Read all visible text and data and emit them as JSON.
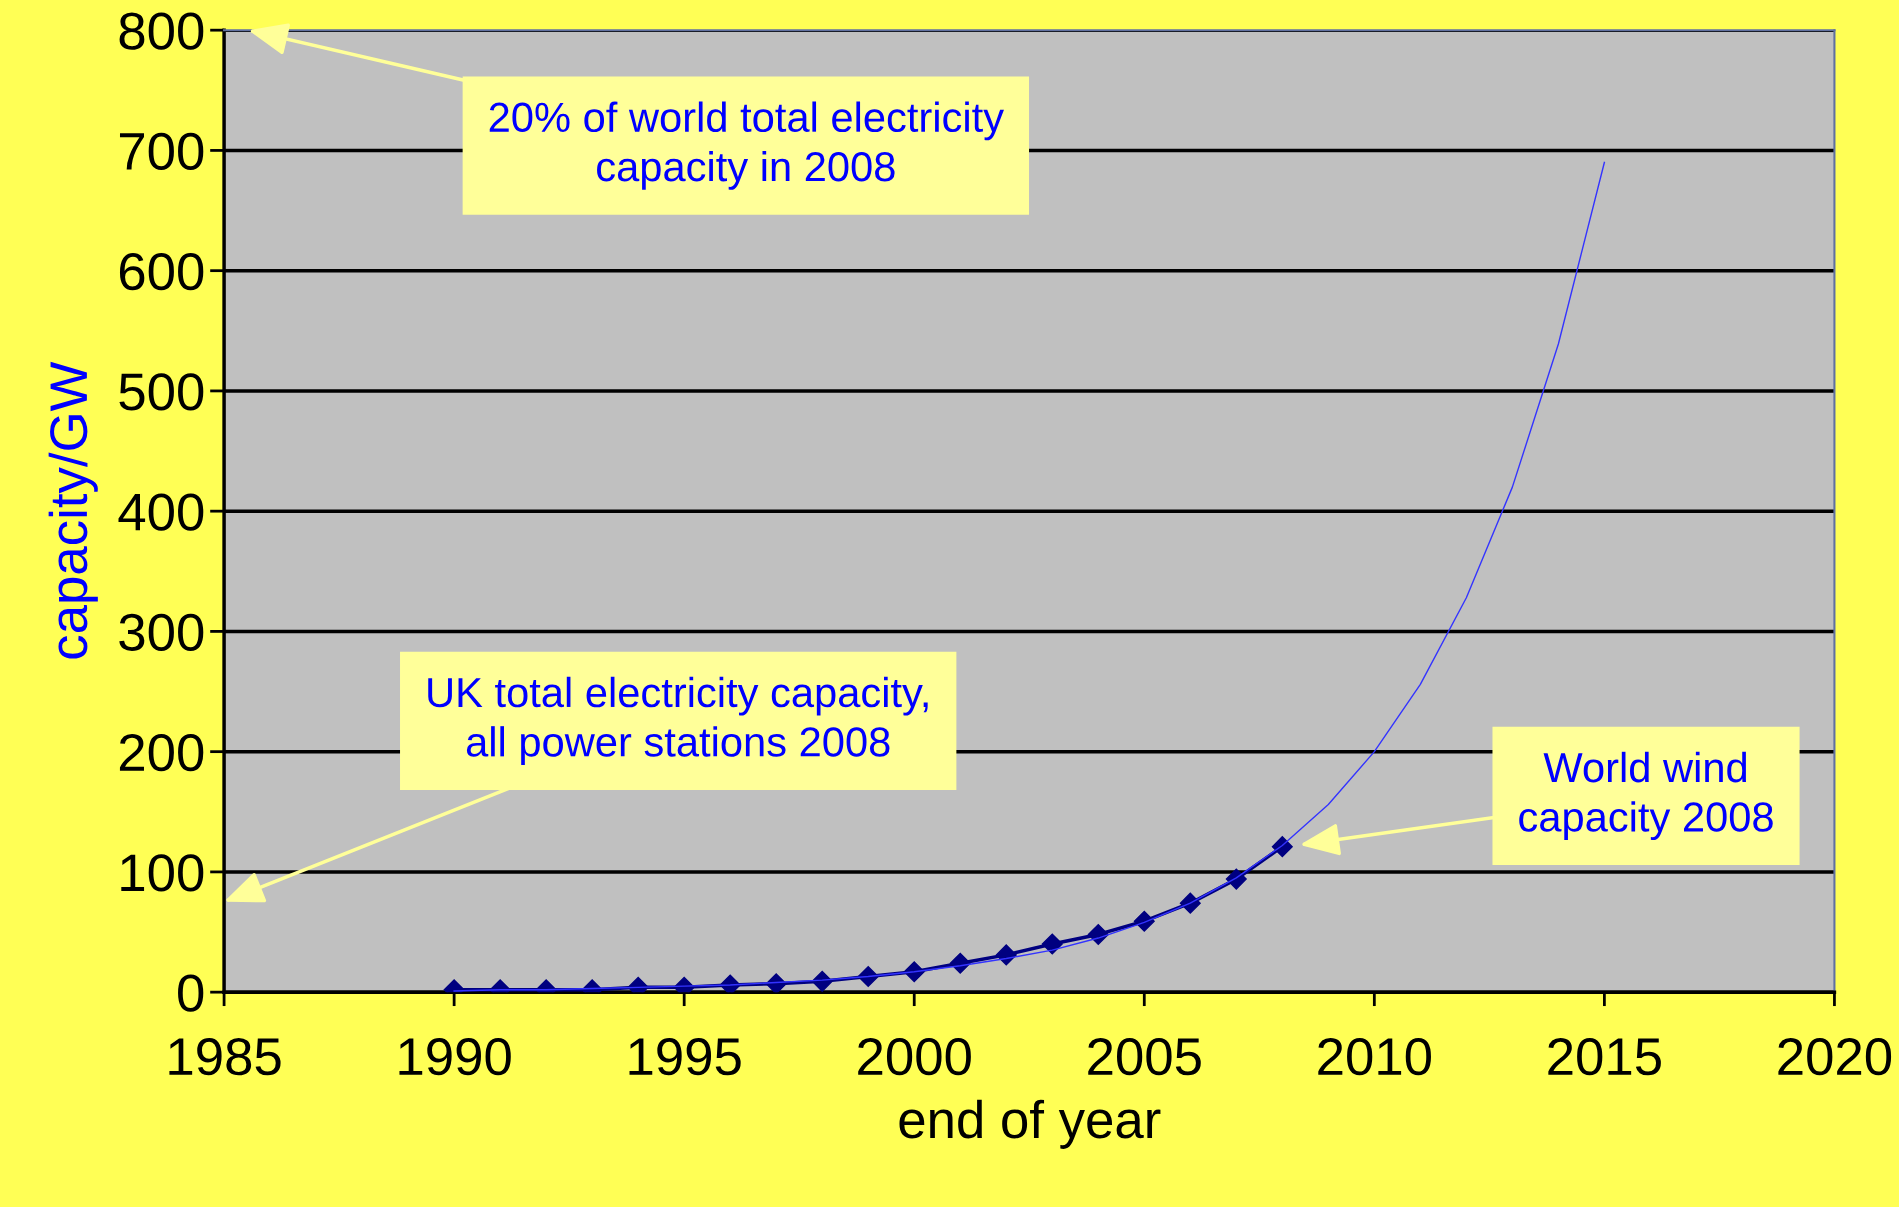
{
  "chart_data": {
    "type": "line",
    "xlabel": "end of year",
    "ylabel": "capacity/GW",
    "xlim": [
      1985,
      2020
    ],
    "xticks": [
      1985,
      1990,
      1995,
      2000,
      2005,
      2010,
      2015,
      2020
    ],
    "ylim": [
      0,
      800
    ],
    "yticks": [
      0,
      100,
      200,
      300,
      400,
      500,
      600,
      700,
      800
    ],
    "grid": "y",
    "legend": false,
    "series": [
      {
        "color": "#3333ff",
        "marker": "none",
        "x": [
          1990,
          1991,
          1992,
          1993,
          1994,
          1995,
          1996,
          1997,
          1998,
          1999,
          2000,
          2001,
          2002,
          2003,
          2004,
          2005,
          2006,
          2007,
          2008,
          2009,
          2010,
          2011,
          2012,
          2013,
          2014,
          2015
        ],
        "values": [
          1,
          2,
          2,
          3,
          4,
          5,
          6,
          8,
          10,
          13,
          17,
          22,
          28,
          35,
          45,
          58,
          74,
          95,
          122,
          156,
          200,
          256,
          328,
          420,
          539,
          690
        ]
      },
      {
        "color": "#000080",
        "marker": "diamond",
        "x": [
          1990,
          1991,
          1992,
          1993,
          1994,
          1995,
          1996,
          1997,
          1998,
          1999,
          2000,
          2001,
          2002,
          2003,
          2004,
          2005,
          2006,
          2007,
          2008
        ],
        "values": [
          2,
          2,
          2,
          2,
          4,
          4,
          6,
          7,
          9,
          13,
          17,
          24,
          31,
          40,
          48,
          59,
          74,
          94,
          121
        ]
      }
    ],
    "annotations": [
      "20% of world total electricity\ncapacity in 2008",
      "UK total electricity capacity,\nall power stations 2008",
      "World wind\ncapacity 2008"
    ]
  }
}
